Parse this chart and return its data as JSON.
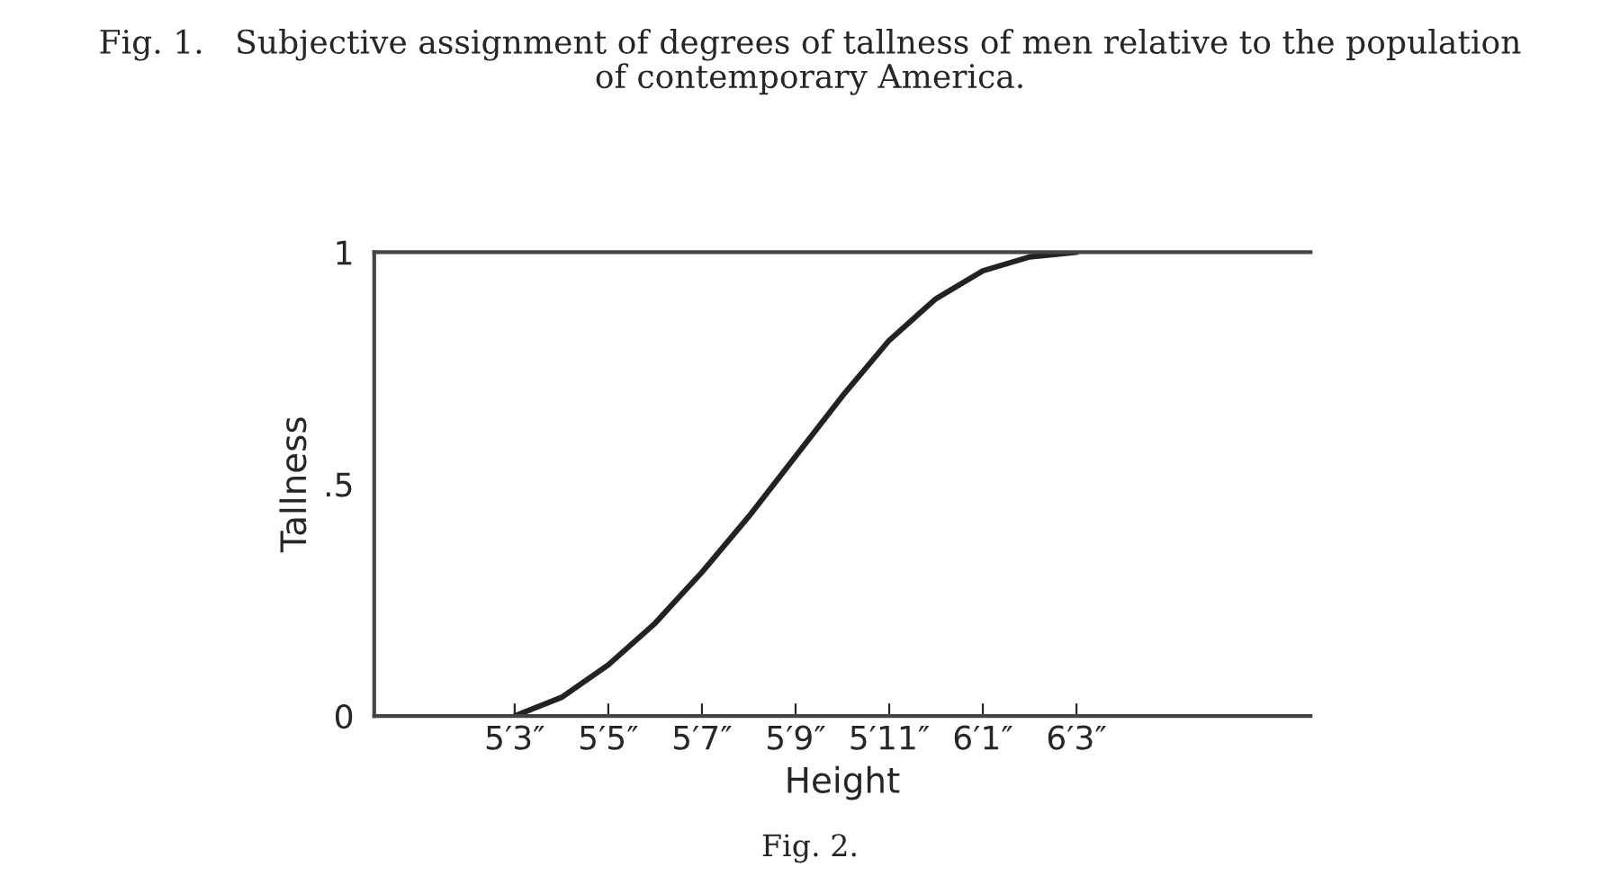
{
  "chart_data": {
    "type": "line",
    "title": "Fig. 1.   Subjective assignment of degrees of tallness of men relative to the population\nof contemporary America.",
    "xlabel": "Height",
    "ylabel": "Tallness",
    "categories": [
      null,
      null,
      null,
      "5′3″",
      null,
      "5′5″",
      null,
      "5′7″",
      null,
      "5′9″",
      null,
      "5′11″",
      null,
      "6′1″",
      null,
      "6′3″",
      null,
      null,
      null,
      null,
      null
    ],
    "series": [
      {
        "color": "#222222",
        "values": [
          null,
          null,
          null,
          0,
          0.04,
          0.11,
          0.2,
          0.31,
          0.43,
          0.56,
          0.69,
          0.81,
          0.9,
          0.96,
          0.99,
          1,
          null,
          null,
          null,
          null,
          null
        ]
      }
    ],
    "ylim": [
      0,
      1
    ],
    "yticks": [
      {
        "value": 0,
        "label": "0"
      },
      {
        "value": 0.5,
        "label": ".5"
      },
      {
        "value": 1,
        "label": "1"
      }
    ],
    "annotations": [
      "Fig. 2."
    ],
    "grid": false,
    "legend": false
  }
}
